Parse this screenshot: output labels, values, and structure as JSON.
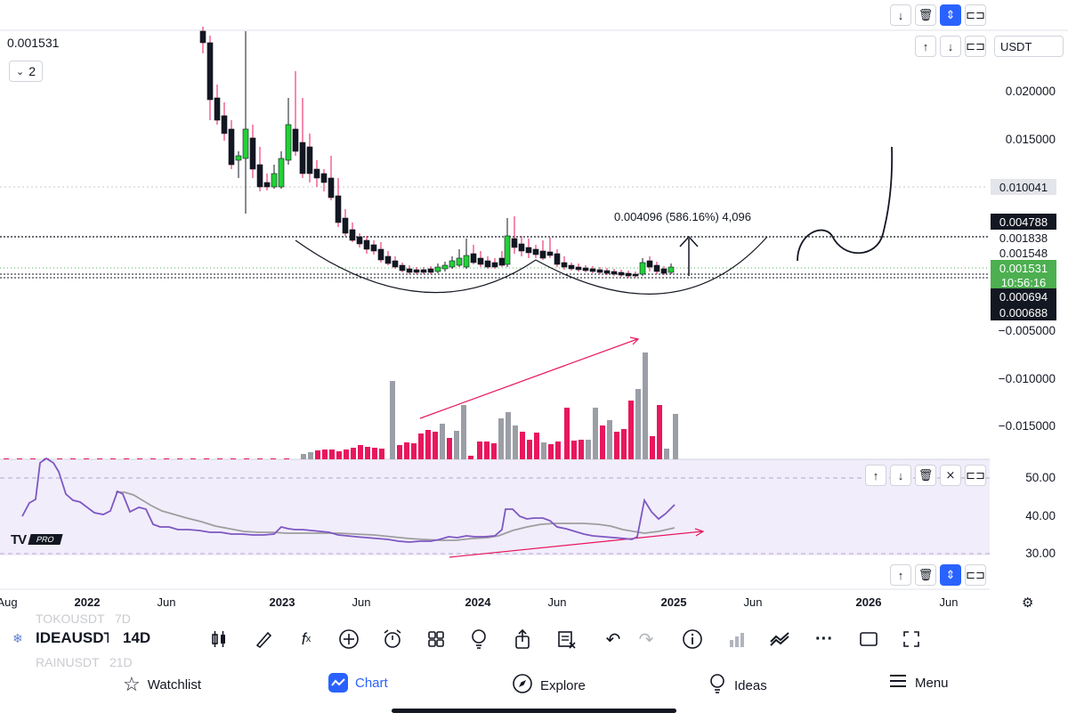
{
  "header": {
    "last_value": "0.001531",
    "layout_count": "2",
    "currency": "USDT"
  },
  "price_axis": {
    "labels": [
      "0.020000",
      "0.015000",
      "−0.005000",
      "−0.010000",
      "−0.015000"
    ],
    "badges": {
      "highlight": "0.010041",
      "level_high": "0.004788",
      "level_a": "0.001838",
      "level_b": "0.001548",
      "current": "0.001531",
      "countdown": "10:56:16",
      "level_low_1": "0.000694",
      "level_low_2": "0.000688"
    }
  },
  "measure_label": "0.004096 (586.16%) 4,096",
  "rsi_axis": [
    "50.00",
    "40.00",
    "30.00"
  ],
  "time_axis": [
    "Aug",
    "2022",
    "Jun",
    "2023",
    "Jun",
    "2024",
    "Jun",
    "2025",
    "Jun",
    "2026",
    "Jun"
  ],
  "logo_badge": "PRO",
  "symbol_bar": {
    "ghost_top": "TOKOUSDT   7D",
    "symbol": "IDEAUSDT",
    "interval": "14D",
    "ghost_bottom": "RAINUSDT   21D"
  },
  "toolbar_icons": [
    "candles-icon",
    "brush-icon",
    "indicators-icon",
    "add-icon",
    "alarm-icon",
    "layout-grid-icon",
    "bulb-icon",
    "share-icon",
    "notes-icon",
    "undo-icon",
    "redo-icon",
    "info-icon",
    "bars-icon",
    "compare-icon",
    "more-icon",
    "square-icon",
    "fullscreen-icon"
  ],
  "bottom_nav": {
    "watchlist": "Watchlist",
    "chart": "Chart",
    "explore": "Explore",
    "ideas": "Ideas",
    "menu": "Menu"
  },
  "colors": {
    "up": "#22d137",
    "down": "#131722",
    "volume_red": "#e8175d",
    "volume_gray": "#9b9ea6",
    "rsi_line": "#7e57c2",
    "rsi_ma": "#9e9e9e",
    "rsi_bg": "#f1edfb",
    "accent": "#2962ff",
    "badge_green": "#4caf50"
  }
}
